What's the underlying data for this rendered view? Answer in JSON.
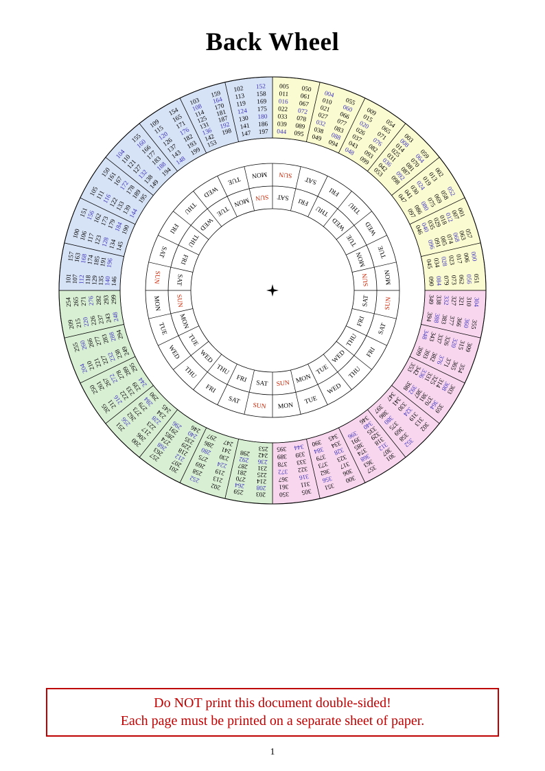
{
  "page": {
    "title": "Back Wheel",
    "page_number": "1"
  },
  "warning": {
    "line1": "Do NOT print this document double-sided!",
    "line2": "Each page must be printed on a separate sheet of paper.",
    "color": "#bf0000"
  },
  "wheel": {
    "leap_year_color": "#3d33bb",
    "regular_year_color": "#000000",
    "sunday_color": "#cc2200",
    "weekday_color": "#000000",
    "center_marker_icon": "four-pointed-star",
    "day_sequence_ccw": [
      "SUN",
      "MON",
      "TUE",
      "WED",
      "THU",
      "FRI",
      "SAT"
    ],
    "day_rings": [
      {
        "name": "outer-day-ring",
        "offset_cells": 0
      },
      {
        "name": "inner-day-ring",
        "offset_cells": -1
      }
    ],
    "quadrants": [
      {
        "position": "top-right",
        "years": "000-099",
        "fill": "#fbfbd2",
        "sectors": [
          [
            "005",
            "011",
            "016",
            "022",
            "033",
            "039",
            "044",
            "050",
            "061",
            "067",
            "072",
            "078",
            "089",
            "095"
          ],
          [
            "004",
            "010",
            "021",
            "027",
            "032",
            "038",
            "049",
            "055",
            "060",
            "066",
            "077",
            "083",
            "088",
            "094"
          ],
          [
            "009",
            "015",
            "020",
            "026",
            "037",
            "043",
            "048",
            "054",
            "065",
            "071",
            "076",
            "082",
            "093",
            "099"
          ],
          [
            "003",
            "008",
            "014",
            "025",
            "031",
            "036",
            "042",
            "053",
            "059",
            "064",
            "070",
            "081",
            "087",
            "092",
            "098"
          ],
          [
            "002",
            "013",
            "019",
            "024",
            "030",
            "041",
            "047",
            "052",
            "058",
            "069",
            "075",
            "080",
            "086",
            "097"
          ],
          [
            "001",
            "007",
            "012",
            "018",
            "029",
            "035",
            "040",
            "046",
            "057",
            "063",
            "068",
            "074",
            "085",
            "091",
            "096"
          ],
          [
            "000",
            "006",
            "017",
            "023",
            "028",
            "034",
            "045",
            "051",
            "056",
            "062",
            "073",
            "079",
            "084",
            "090"
          ]
        ]
      },
      {
        "position": "bottom-right",
        "years": "300-399",
        "fill": "#f8d7ee",
        "sectors": [
          [
            "304",
            "310",
            "321",
            "327",
            "332",
            "338",
            "349",
            "355",
            "360",
            "366",
            "377",
            "383",
            "388",
            "394"
          ],
          [
            "309",
            "315",
            "320",
            "326",
            "337",
            "343",
            "348",
            "354",
            "365",
            "371",
            "376",
            "382",
            "393",
            "399"
          ],
          [
            "303",
            "308",
            "314",
            "325",
            "331",
            "336",
            "342",
            "353",
            "359",
            "364",
            "370",
            "381",
            "387",
            "392",
            "398"
          ],
          [
            "302",
            "313",
            "319",
            "324",
            "330",
            "341",
            "347",
            "352",
            "358",
            "369",
            "375",
            "380",
            "386",
            "397"
          ],
          [
            "301",
            "307",
            "312",
            "318",
            "329",
            "335",
            "340",
            "346",
            "357",
            "363",
            "368",
            "374",
            "385",
            "391",
            "396"
          ],
          [
            "300",
            "306",
            "317",
            "323",
            "328",
            "334",
            "345",
            "351",
            "356",
            "362",
            "373",
            "379",
            "384",
            "390"
          ],
          [
            "305",
            "311",
            "316",
            "322",
            "333",
            "339",
            "344",
            "350",
            "361",
            "367",
            "372",
            "378",
            "389",
            "395"
          ]
        ]
      },
      {
        "position": "bottom-left",
        "years": "200-299",
        "fill": "#d9efd4",
        "sectors": [
          [
            "203",
            "208",
            "214",
            "225",
            "231",
            "236",
            "242",
            "253",
            "259",
            "264",
            "270",
            "281",
            "287",
            "292",
            "298"
          ],
          [
            "202",
            "213",
            "219",
            "224",
            "230",
            "241",
            "247",
            "252",
            "258",
            "269",
            "275",
            "280",
            "286",
            "297"
          ],
          [
            "201",
            "207",
            "212",
            "218",
            "229",
            "235",
            "240",
            "246",
            "257",
            "263",
            "268",
            "274",
            "285",
            "291",
            "296"
          ],
          [
            "200",
            "206",
            "217",
            "223",
            "228",
            "234",
            "245",
            "251",
            "256",
            "262",
            "273",
            "279",
            "284",
            "290"
          ],
          [
            "205",
            "211",
            "216",
            "222",
            "233",
            "239",
            "244",
            "250",
            "261",
            "267",
            "272",
            "278",
            "289",
            "295"
          ],
          [
            "204",
            "210",
            "221",
            "227",
            "232",
            "238",
            "249",
            "255",
            "260",
            "266",
            "277",
            "283",
            "288",
            "294"
          ],
          [
            "209",
            "215",
            "220",
            "226",
            "237",
            "243",
            "248",
            "254",
            "265",
            "271",
            "276",
            "282",
            "293",
            "299"
          ]
        ]
      },
      {
        "position": "top-left",
        "years": "100-199",
        "fill": "#d6e2f5",
        "sectors": [
          [
            "101",
            "107",
            "112",
            "118",
            "129",
            "135",
            "140",
            "146",
            "157",
            "163",
            "168",
            "174",
            "185",
            "191",
            "196"
          ],
          [
            "100",
            "106",
            "117",
            "123",
            "128",
            "134",
            "145",
            "151",
            "156",
            "162",
            "173",
            "179",
            "184",
            "190"
          ],
          [
            "105",
            "111",
            "116",
            "122",
            "133",
            "139",
            "144",
            "150",
            "161",
            "167",
            "172",
            "178",
            "189",
            "195"
          ],
          [
            "104",
            "110",
            "121",
            "127",
            "132",
            "138",
            "149",
            "155",
            "160",
            "166",
            "177",
            "183",
            "188",
            "194"
          ],
          [
            "109",
            "115",
            "120",
            "126",
            "137",
            "143",
            "148",
            "154",
            "165",
            "171",
            "176",
            "182",
            "193",
            "199"
          ],
          [
            "103",
            "108",
            "114",
            "125",
            "131",
            "136",
            "142",
            "153",
            "159",
            "164",
            "170",
            "181",
            "187",
            "192",
            "198"
          ],
          [
            "102",
            "113",
            "119",
            "124",
            "130",
            "141",
            "147",
            "152",
            "158",
            "169",
            "175",
            "180",
            "186",
            "197"
          ]
        ]
      }
    ]
  }
}
